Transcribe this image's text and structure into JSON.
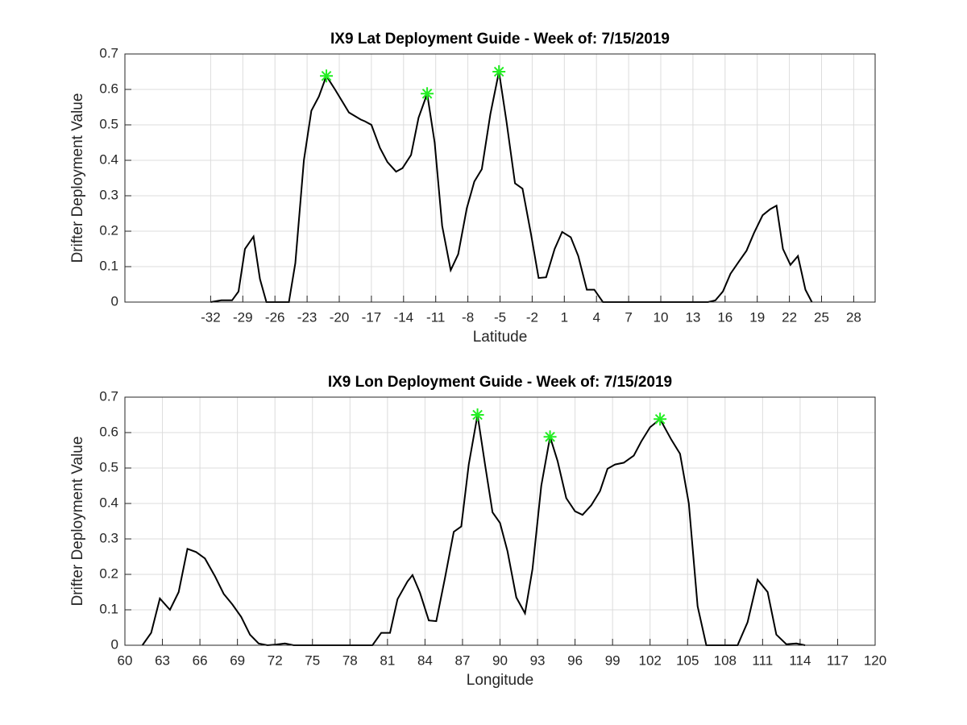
{
  "chart_data": [
    {
      "type": "line",
      "title": "IX9 Lat Deployment Guide - Week of: 7/15/2019",
      "xlabel": "Latitude",
      "ylabel": "Drifter Deployment Value",
      "xlim": [
        -40,
        30
      ],
      "xticks": [
        -32,
        -29,
        -26,
        -23,
        -20,
        -17,
        -14,
        -11,
        -8,
        -5,
        -2,
        1,
        4,
        7,
        10,
        13,
        16,
        19,
        22,
        25,
        28
      ],
      "ylim": [
        0,
        0.7
      ],
      "yticks": [
        0,
        0.1,
        0.2,
        0.3,
        0.4,
        0.5,
        0.6,
        0.7
      ],
      "grid": true,
      "color": "#000000",
      "x": [
        -32.0,
        -31.0,
        -30.0,
        -29.4,
        -28.8,
        -28.0,
        -27.4,
        -26.8,
        -24.7,
        -24.1,
        -23.3,
        -22.6,
        -21.9,
        -21.2,
        -20.4,
        -19.1,
        -18.0,
        -17.6,
        -17.0,
        -16.2,
        -15.5,
        -14.7,
        -14.1,
        -13.3,
        -12.6,
        -11.8,
        -11.1,
        -10.4,
        -9.6,
        -8.9,
        -8.1,
        -7.4,
        -6.7,
        -5.9,
        -5.1,
        -4.4,
        -3.6,
        -2.9,
        -2.1,
        -1.4,
        -0.7,
        0.1,
        0.8,
        1.6,
        2.3,
        3.1,
        3.8,
        4.6,
        9.1,
        14.4,
        15.1,
        15.8,
        16.5,
        17.3,
        18.0,
        18.7,
        19.5,
        20.2,
        20.8,
        21.4,
        22.1,
        22.8,
        23.5,
        24.1
      ],
      "values": [
        0,
        0.005,
        0.005,
        0.03,
        0.15,
        0.185,
        0.065,
        0,
        0,
        0.11,
        0.4,
        0.54,
        0.58,
        0.638,
        0.6,
        0.535,
        0.515,
        0.51,
        0.5,
        0.435,
        0.395,
        0.368,
        0.378,
        0.415,
        0.52,
        0.588,
        0.45,
        0.215,
        0.09,
        0.135,
        0.265,
        0.34,
        0.375,
        0.53,
        0.65,
        0.51,
        0.335,
        0.32,
        0.19,
        0.068,
        0.07,
        0.15,
        0.198,
        0.183,
        0.13,
        0.035,
        0.035,
        0,
        0,
        0,
        0.005,
        0.03,
        0.08,
        0.115,
        0.145,
        0.195,
        0.245,
        0.262,
        0.272,
        0.15,
        0.105,
        0.13,
        0.035,
        0
      ],
      "peaks": {
        "x": [
          -21.2,
          -11.8,
          -5.1
        ],
        "values": [
          0.638,
          0.588,
          0.65
        ],
        "color": "#22ee22"
      }
    },
    {
      "type": "line",
      "title": "IX9 Lon Deployment Guide - Week of: 7/15/2019",
      "xlabel": "Longitude",
      "ylabel": "Drifter Deployment Value",
      "xlim": [
        60,
        120
      ],
      "xticks": [
        60,
        63,
        66,
        69,
        72,
        75,
        78,
        81,
        84,
        87,
        90,
        93,
        96,
        99,
        102,
        105,
        108,
        111,
        114,
        117,
        120
      ],
      "ylim": [
        0,
        0.7
      ],
      "yticks": [
        0,
        0.1,
        0.2,
        0.3,
        0.4,
        0.5,
        0.6,
        0.7
      ],
      "grid": true,
      "color": "#000000",
      "x": [
        61.4,
        62.1,
        62.8,
        63.6,
        64.3,
        65.0,
        65.7,
        66.4,
        67.2,
        67.9,
        68.6,
        69.3,
        70.0,
        70.7,
        71.4,
        72.1,
        72.8,
        73.5,
        79.8,
        80.5,
        81.2,
        81.8,
        82.6,
        83.0,
        83.6,
        84.3,
        84.9,
        85.6,
        86.3,
        86.9,
        87.5,
        88.2,
        88.8,
        89.4,
        90.0,
        90.6,
        91.3,
        92.0,
        92.6,
        93.3,
        94.0,
        94.6,
        95.3,
        96.0,
        96.6,
        97.3,
        98.0,
        98.6,
        99.2,
        99.9,
        100.7,
        101.3,
        102.0,
        102.8,
        103.7,
        104.4,
        105.1,
        105.8,
        106.5,
        109.0,
        109.8,
        110.6,
        111.4,
        112.1,
        112.9,
        113.7,
        114.4
      ],
      "values": [
        0,
        0.035,
        0.132,
        0.1,
        0.15,
        0.272,
        0.263,
        0.245,
        0.195,
        0.145,
        0.115,
        0.08,
        0.03,
        0.005,
        0,
        0.002,
        0.005,
        0,
        0,
        0.035,
        0.035,
        0.13,
        0.18,
        0.198,
        0.148,
        0.07,
        0.068,
        0.19,
        0.32,
        0.335,
        0.51,
        0.65,
        0.51,
        0.375,
        0.345,
        0.265,
        0.135,
        0.09,
        0.215,
        0.45,
        0.588,
        0.52,
        0.415,
        0.378,
        0.368,
        0.395,
        0.435,
        0.498,
        0.51,
        0.515,
        0.535,
        0.575,
        0.615,
        0.638,
        0.58,
        0.54,
        0.4,
        0.11,
        0,
        0,
        0.065,
        0.185,
        0.15,
        0.03,
        0.003,
        0.005,
        0
      ],
      "peaks": {
        "x": [
          88.2,
          94.0,
          102.8
        ],
        "values": [
          0.65,
          0.588,
          0.638
        ],
        "color": "#22ee22"
      }
    }
  ]
}
